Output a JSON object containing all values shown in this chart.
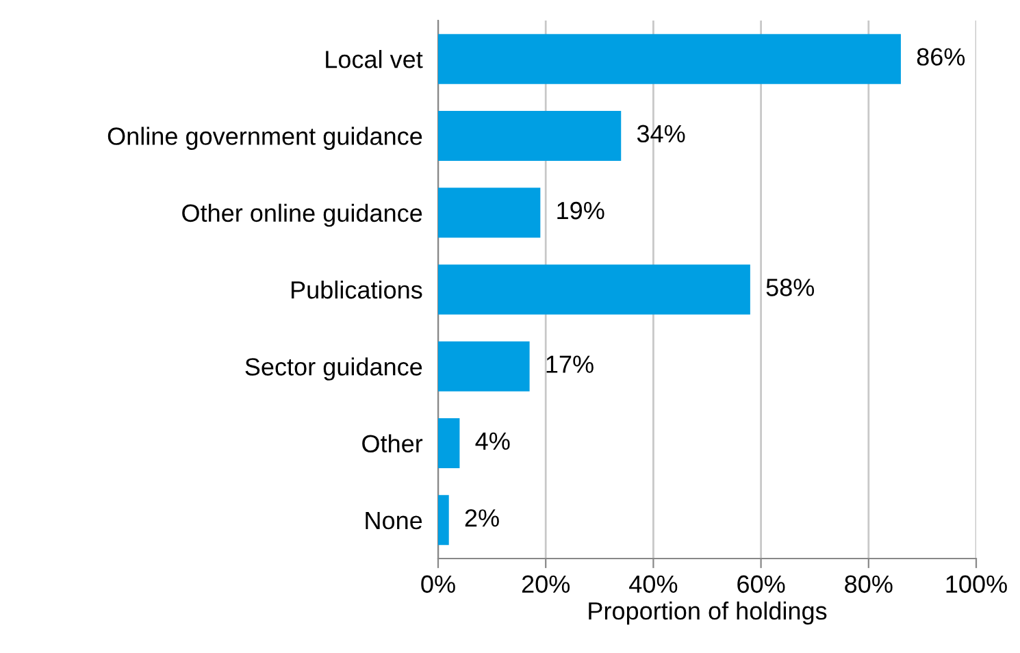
{
  "chart_data": {
    "type": "bar",
    "orientation": "horizontal",
    "xlabel": "Proportion of holdings",
    "categories": [
      "Local vet",
      "Online government guidance",
      "Other online guidance",
      "Publications",
      "Sector guidance",
      "Other",
      "None"
    ],
    "values": [
      86,
      34,
      19,
      58,
      17,
      4,
      2
    ],
    "value_labels": [
      "86%",
      "34%",
      "19%",
      "58%",
      "17%",
      "4%",
      "2%"
    ],
    "color": "#009fe3",
    "xlim": [
      0,
      100
    ],
    "xticks": [
      {
        "value": 0,
        "label": "0%"
      },
      {
        "value": 20,
        "label": "20%"
      },
      {
        "value": 40,
        "label": "40%"
      },
      {
        "value": 60,
        "label": "60%"
      },
      {
        "value": 80,
        "label": "80%"
      },
      {
        "value": 100,
        "label": "100%"
      }
    ],
    "grid": "x",
    "legend": false
  }
}
